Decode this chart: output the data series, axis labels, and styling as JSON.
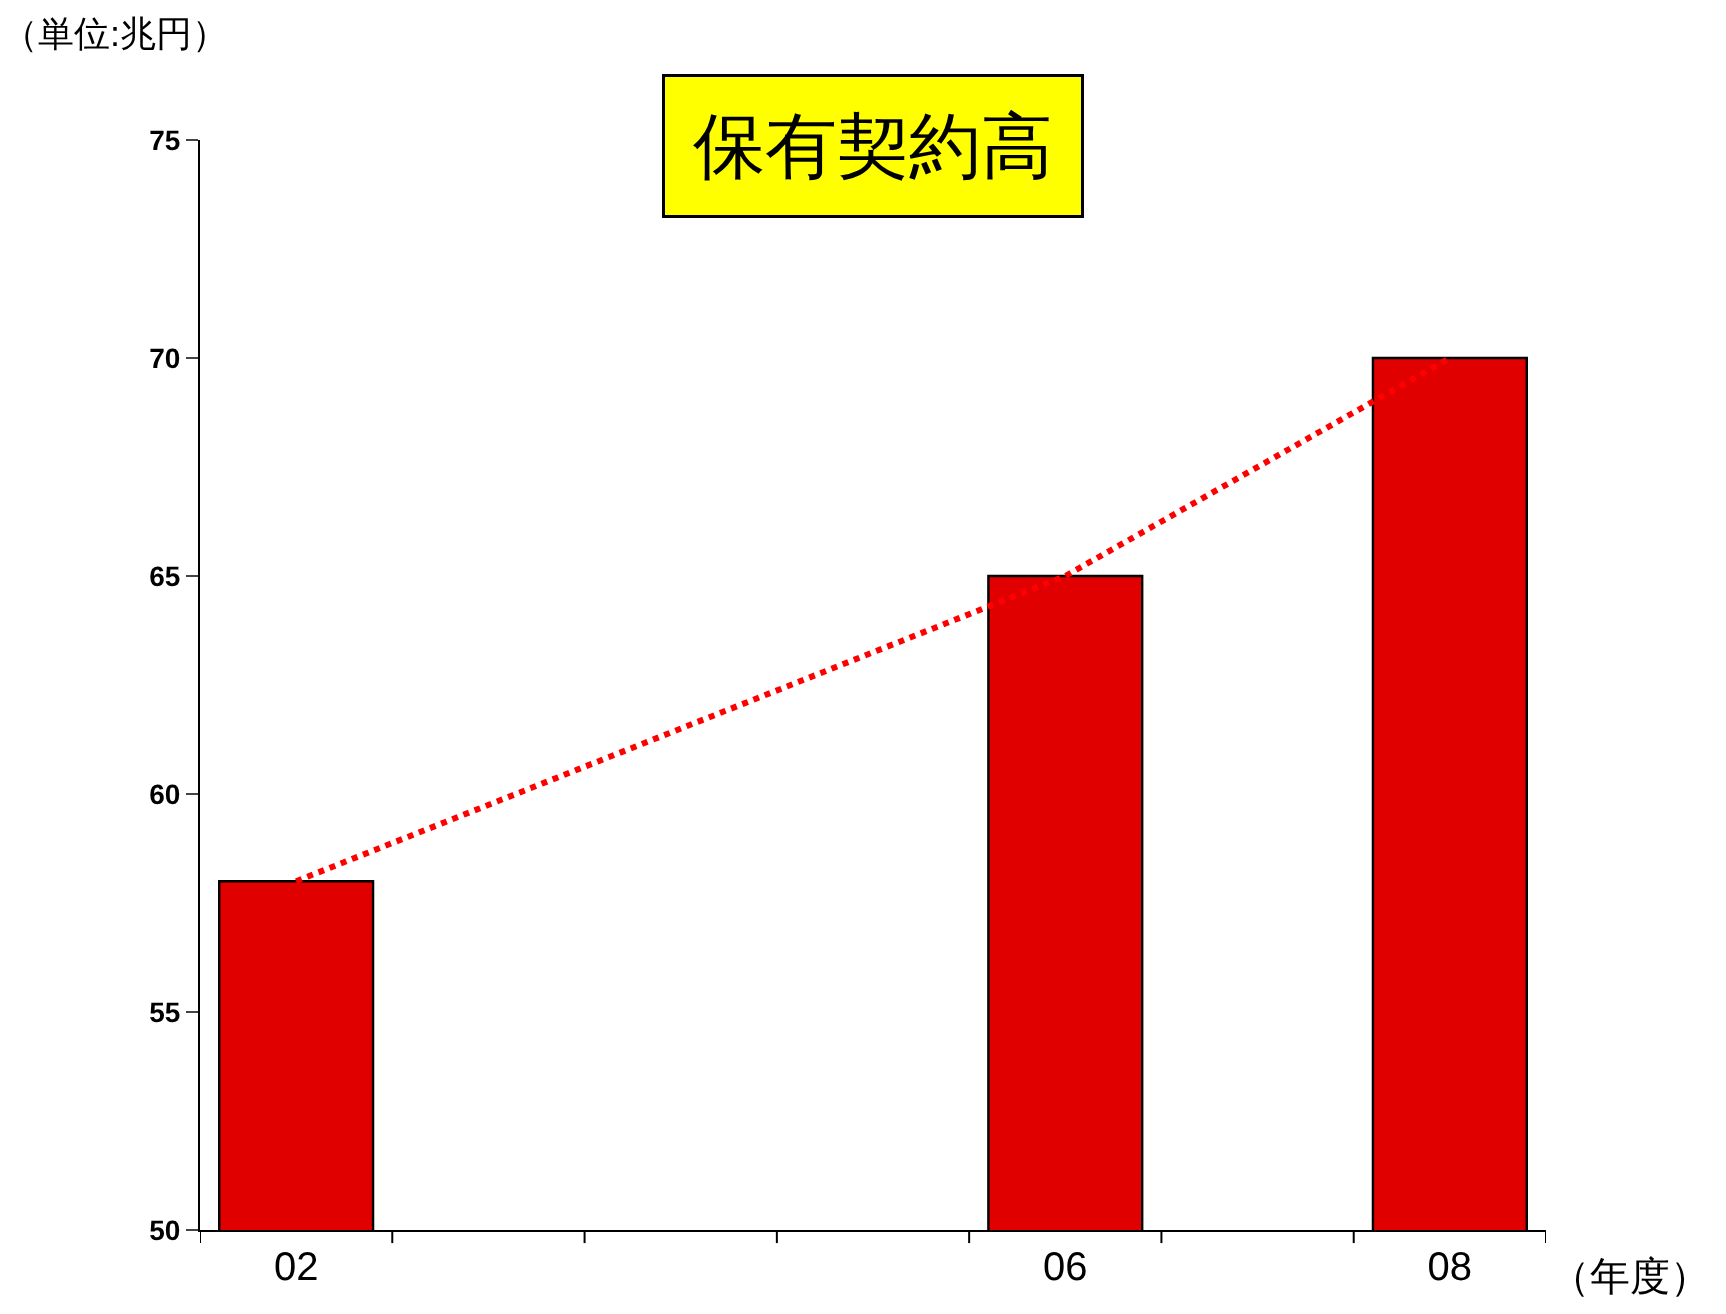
{
  "chart_data": {
    "type": "bar",
    "title": "保有契約高",
    "ylabel": "（単位:兆円）",
    "xlabel": "（年度）",
    "categories": [
      "02",
      null,
      null,
      null,
      "06",
      null,
      "08"
    ],
    "series": [
      {
        "color": "#e00000",
        "values": [
          58,
          null,
          null,
          null,
          65,
          null,
          70
        ]
      },
      {
        "type": "line",
        "color": "#ff0000",
        "values": [
          58,
          null,
          null,
          null,
          65,
          null,
          70
        ],
        "line_style": "dotted",
        "marker": "none"
      }
    ],
    "ylim": [
      50,
      75
    ],
    "yticks": [
      50,
      55,
      60,
      65,
      70,
      75
    ]
  }
}
